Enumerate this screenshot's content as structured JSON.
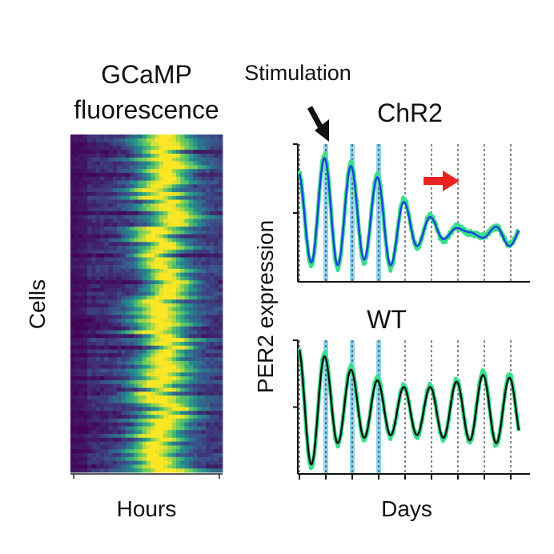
{
  "figure": {
    "heatmap_title_line1": "GCaMP",
    "heatmap_title_line2": "fluorescence",
    "stimulation_label": "Stimulation",
    "shared_ylabel": "PER2 expression",
    "shared_xlabel": "Days"
  },
  "chart_data": [
    {
      "type": "heatmap",
      "title": "GCaMP fluorescence",
      "xlabel": "Hours",
      "ylabel": "Cells",
      "colormap": [
        "#440154",
        "#3b528b",
        "#21918c",
        "#5ec962",
        "#fde725"
      ],
      "n_cells": 88,
      "n_bins": 36,
      "peak_bin_fraction": 0.6,
      "value_range": [
        0,
        1
      ]
    },
    {
      "type": "line",
      "title": "ChR2",
      "xlabel": "Days",
      "ylabel": "PER2 expression",
      "days": 8,
      "stimulation_days": [
        1,
        2,
        3
      ],
      "series": [
        {
          "role": "data",
          "color": "#35e08a",
          "peaks": [
            0.82,
            0.92,
            0.86,
            0.78,
            0.6,
            0.48,
            0.4,
            0.33,
            0.27
          ],
          "troughs": [
            0.12,
            0.1,
            0.14,
            0.1,
            0.25,
            0.3,
            0.35,
            0.4
          ]
        },
        {
          "role": "fit",
          "color": "#1f3fe0",
          "peaks": [
            0.8,
            0.9,
            0.84,
            0.76,
            0.58,
            0.47,
            0.39,
            0.32,
            0.26
          ],
          "troughs": [
            0.14,
            0.12,
            0.16,
            0.12,
            0.26,
            0.31,
            0.36,
            0.4
          ]
        }
      ],
      "annotations": [
        {
          "type": "arrow",
          "color": "#111111",
          "points_to_day": 1.0
        },
        {
          "type": "arrow",
          "color": "#ee2222",
          "at_day": 5.3
        }
      ]
    },
    {
      "type": "line",
      "title": "WT",
      "xlabel": "Days",
      "ylabel": "PER2 expression",
      "days": 8,
      "stimulation_days": [
        1,
        2,
        3
      ],
      "series": [
        {
          "role": "data",
          "color": "#35e08a",
          "peaks": [
            0.96,
            0.9,
            0.8,
            0.72,
            0.66,
            0.66,
            0.7,
            0.76,
            0.74
          ],
          "troughs": [
            0.05,
            0.22,
            0.26,
            0.28,
            0.28,
            0.26,
            0.24,
            0.22
          ]
        },
        {
          "role": "fit",
          "color": "#111111",
          "peaks": [
            0.95,
            0.88,
            0.78,
            0.7,
            0.65,
            0.65,
            0.69,
            0.74,
            0.72
          ],
          "troughs": [
            0.07,
            0.23,
            0.27,
            0.29,
            0.29,
            0.27,
            0.25,
            0.23
          ]
        }
      ]
    }
  ]
}
